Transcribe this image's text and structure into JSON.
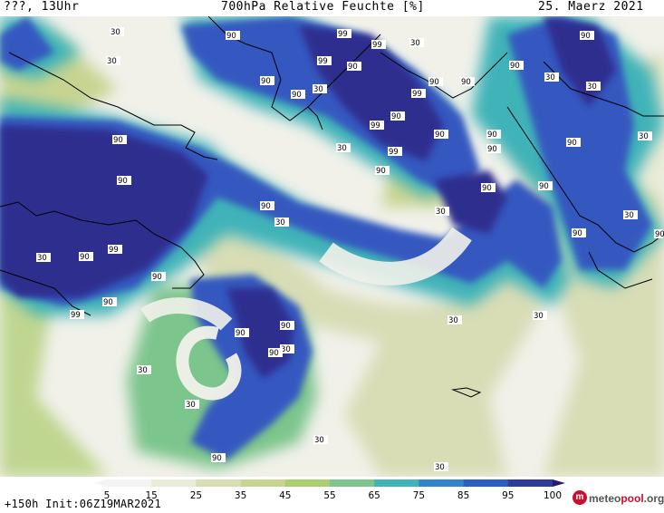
{
  "header": {
    "location_time": "???, 13Uhr",
    "title": "700hPa Relative Feuchte [%]",
    "date": "25. Maerz 2021"
  },
  "footer": {
    "forecast_info": "+150h Init:06Z19MAR2021",
    "brand_prefix": "meteo",
    "brand_name": "pool",
    "brand_suffix": ".org"
  },
  "legend": {
    "ticks": [
      "5",
      "15",
      "25",
      "35",
      "45",
      "55",
      "65",
      "75",
      "85",
      "95",
      "100"
    ],
    "colors": [
      "#f4f4f4",
      "#e9ecd7",
      "#d8ddb6",
      "#c7d491",
      "#a8cf70",
      "#7cc58c",
      "#40b3b8",
      "#2f86cc",
      "#2d5fc0",
      "#2f3c9c",
      "#2a1a6c"
    ]
  },
  "map_labels": [
    "30",
    "90",
    "99"
  ],
  "colors": {
    "moist_dark": "#2d2f8f",
    "moist": "#3559c0",
    "medium": "#2f8ad0",
    "light_green": "#bfd690",
    "dry": "#f1f1ea",
    "coast": "#000000"
  }
}
